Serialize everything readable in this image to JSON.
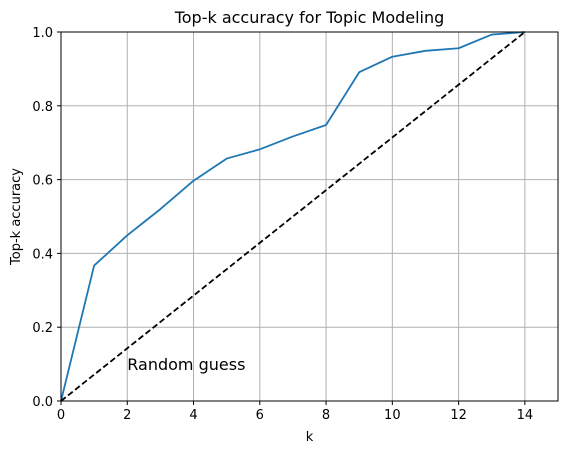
{
  "chart_data": {
    "type": "line",
    "title": "Top-k accuracy for Topic Modeling",
    "xlabel": "k",
    "ylabel": "Top-k accuracy",
    "xlim": [
      0,
      15
    ],
    "ylim": [
      0,
      1.0
    ],
    "xticks": [
      0,
      2,
      4,
      6,
      8,
      10,
      12,
      14
    ],
    "yticks": [
      0.0,
      0.2,
      0.4,
      0.6,
      0.8,
      1.0
    ],
    "xtick_labels": [
      "0",
      "2",
      "4",
      "6",
      "8",
      "10",
      "12",
      "14"
    ],
    "ytick_labels": [
      "0.0",
      "0.2",
      "0.4",
      "0.6",
      "0.8",
      "1.0"
    ],
    "grid": true,
    "series": [
      {
        "color": "#1f77b4",
        "style": "solid",
        "x": [
          0,
          1,
          2,
          3,
          4,
          5,
          6,
          7,
          8,
          9,
          10,
          11,
          12,
          13,
          14
        ],
        "y": [
          0.0,
          0.367,
          0.449,
          0.52,
          0.597,
          0.657,
          0.682,
          0.717,
          0.748,
          0.891,
          0.933,
          0.949,
          0.956,
          0.993,
          1.0
        ]
      },
      {
        "color": "#000000",
        "style": "dashed",
        "x": [
          0,
          14
        ],
        "y": [
          0.0,
          1.0
        ]
      }
    ],
    "annotations": [
      {
        "text": "Random guess",
        "x": 2,
        "y": 0.1
      }
    ]
  }
}
